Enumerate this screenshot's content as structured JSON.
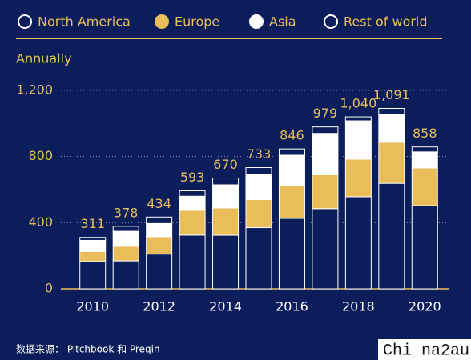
{
  "chart_data": {
    "type": "stacked-bar",
    "subtitle": "Annually",
    "categories": [
      "2010",
      null,
      "2012",
      null,
      "2014",
      null,
      "2016",
      null,
      "2018",
      null,
      "2020"
    ],
    "series": [
      {
        "name": "North America",
        "color": "#0b1e5b",
        "values": [
          165,
          169,
          210,
          325,
          324,
          370,
          426,
          485,
          557,
          638,
          503
        ]
      },
      {
        "name": "Europe",
        "color": "#e8bd5a",
        "values": [
          60,
          88,
          105,
          150,
          165,
          170,
          198,
          205,
          227,
          248,
          228
        ]
      },
      {
        "name": "Asia",
        "color": "#ffffff",
        "values": [
          68,
          91,
          80,
          85,
          140,
          150,
          184,
          250,
          232,
          169,
          97
        ]
      },
      {
        "name": "Rest of world",
        "color": "#0b1e5b",
        "values": [
          18,
          30,
          39,
          33,
          41,
          43,
          38,
          39,
          24,
          36,
          30
        ]
      }
    ],
    "totals": [
      311,
      378,
      434,
      593,
      670,
      733,
      846,
      979,
      {
        "value": 1040,
        "label": "1,040"
      },
      {
        "value": 1091,
        "label": "1,091"
      },
      858
    ],
    "ylim": [
      0,
      1200
    ],
    "yticks": [
      0,
      400,
      800,
      {
        "value": 1200,
        "label": "1,200"
      }
    ],
    "grid": true,
    "source": "数据来源： Pitchbook 和 Preqin",
    "watermark": "Chi na2au"
  }
}
